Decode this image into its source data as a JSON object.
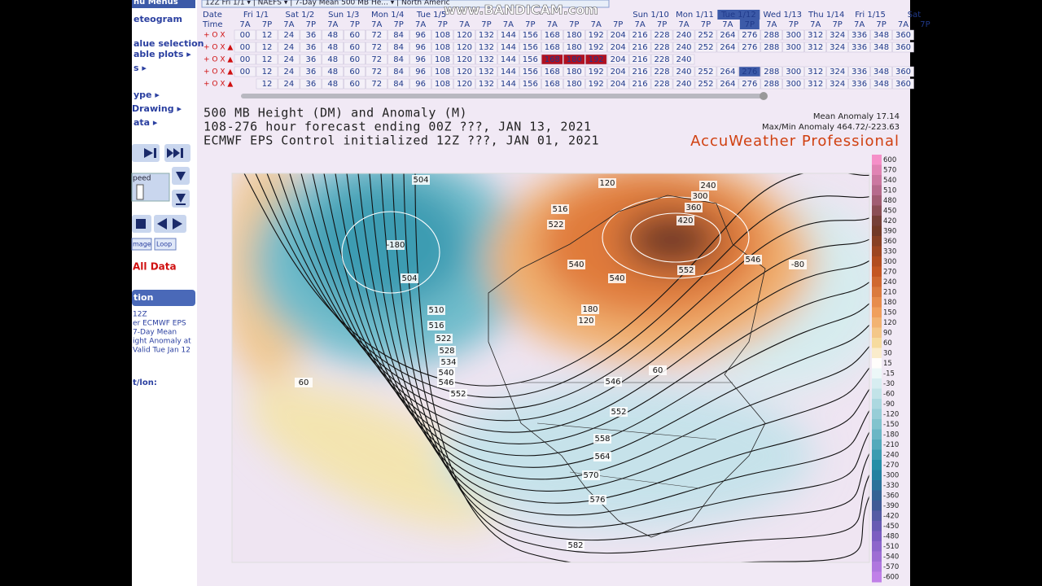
{
  "watermark": "www.BANDICAM.com",
  "header": {
    "selector": "12Z Fri 1/1 ▾ | NAEFS ▾ | 7-Day Mean 500 MB He... ▾ | North Americ"
  },
  "sidebar": {
    "menu": "nu Menus",
    "items": [
      "eteogram",
      "alue selection",
      "able plots ▸",
      "s ▸",
      "ype ▸",
      "Drawing ▸",
      "ata ▸"
    ],
    "speed": "peed",
    "buttons": [
      "mage",
      "Loop"
    ],
    "all_data": "All Data",
    "section": "tion",
    "info": [
      "12Z",
      "er ECMWF EPS",
      "7-Day Mean",
      "ight Anomaly at",
      "Valid Tue Jan 12"
    ],
    "latlon": "t/lon:"
  },
  "timeline": {
    "date_label": "Date",
    "time_label": "Time",
    "dates": [
      "Fri 1/1",
      "Sat 1/2",
      "Sun 1/3",
      "Mon 1/4",
      "Tue 1/5",
      null,
      null,
      null,
      null,
      "Sun 1/10",
      "Mon 1/11",
      "Tue 1/12",
      "Wed 1/13",
      "Thu 1/14",
      "Fri 1/15",
      "Sat"
    ],
    "times": [
      "7A",
      "7P"
    ],
    "rows": [
      {
        "prefix": "+ O X",
        "cells": [
          "00",
          "12",
          "24",
          "36",
          "48",
          "60",
          "72",
          "84",
          "96",
          "108",
          "120",
          "132",
          "144",
          "156",
          "168",
          "180",
          "192",
          "204",
          "216",
          "228",
          "240",
          "252",
          "264",
          "276",
          "288",
          "300",
          "312",
          "324",
          "336",
          "348",
          "360"
        ]
      },
      {
        "prefix": "+ O X ▲",
        "cells": [
          "00",
          "12",
          "24",
          "36",
          "48",
          "60",
          "72",
          "84",
          "96",
          "108",
          "120",
          "132",
          "144",
          "156",
          "168",
          "180",
          "192",
          "204",
          "216",
          "228",
          "240",
          "252",
          "264",
          "276",
          "288",
          "300",
          "312",
          "324",
          "336",
          "348",
          "360"
        ]
      },
      {
        "prefix": "+ O X ▲",
        "cells": [
          "00",
          "12",
          "24",
          "36",
          "48",
          "60",
          "72",
          "84",
          "96",
          "108",
          "120",
          "132",
          "144",
          "156",
          "168",
          "180",
          "192",
          "204",
          "216",
          "228",
          "240",
          null,
          null,
          null,
          null,
          null,
          null,
          null,
          null,
          null,
          null
        ]
      },
      {
        "prefix": "+ O X ▲",
        "cells": [
          "00",
          "12",
          "24",
          "36",
          "48",
          "60",
          "72",
          "84",
          "96",
          "108",
          "120",
          "132",
          "144",
          "156",
          "168",
          "180",
          "192",
          "204",
          "216",
          "228",
          "240",
          "252",
          "264",
          "276",
          "288",
          "300",
          "312",
          "324",
          "336",
          "348",
          "360"
        ]
      },
      {
        "prefix": "+ O X ▲",
        "cells": [
          null,
          "12",
          "24",
          "36",
          "48",
          "60",
          "72",
          "84",
          "96",
          "108",
          "120",
          "132",
          "144",
          "156",
          "168",
          "180",
          "192",
          "204",
          "216",
          "228",
          "240",
          "252",
          "264",
          "276",
          "288",
          "300",
          "312",
          "324",
          "336",
          "348",
          "360"
        ]
      }
    ]
  },
  "title": {
    "lines": [
      "500 MB Height (DM) and Anomaly (M)",
      "108-276 hour forecast ending 00Z ???, JAN 13, 2021",
      "ECMWF EPS Control initialized 12Z ???, JAN 01, 2021"
    ],
    "mean_anomaly": "Mean Anomaly 17.14",
    "maxmin": "Max/Min Anomaly 464.72/-223.63",
    "brand": "AccuWeather Professional"
  },
  "map": {
    "labels": [
      "504",
      "516",
      "522",
      "-180",
      "504",
      "510",
      "516",
      "522",
      "528",
      "534",
      "540",
      "546",
      "552",
      "540",
      "540",
      "546",
      "552",
      "120",
      "420",
      "360",
      "300",
      "240",
      "180",
      "120",
      "60",
      "-80",
      "546",
      "552",
      "558",
      "564",
      "570",
      "576",
      "582",
      "60"
    ]
  },
  "colorbar": {
    "labels": [
      600,
      570,
      540,
      510,
      480,
      450,
      420,
      390,
      360,
      330,
      300,
      270,
      240,
      210,
      180,
      150,
      120,
      90,
      60,
      30,
      15,
      -15,
      -30,
      -60,
      -90,
      -120,
      -150,
      -180,
      -210,
      -240,
      -270,
      -300,
      -330,
      -360,
      -390,
      -420,
      -450,
      -480,
      -510,
      -540,
      -570,
      -600
    ]
  }
}
